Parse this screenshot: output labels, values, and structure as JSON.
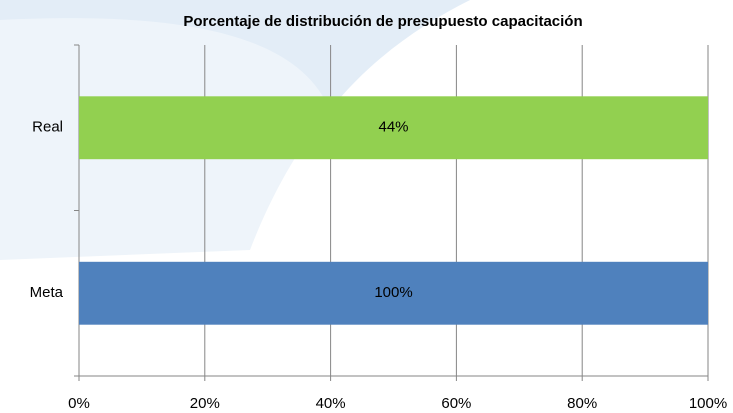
{
  "chart_data": {
    "type": "bar",
    "orientation": "horizontal",
    "stacked": "percent",
    "title": "Porcentaje de distribución de presupuesto capacitación",
    "categories": [
      "Real",
      "Meta"
    ],
    "series": [
      {
        "colors": [
          "#92d050",
          "#4f81bd"
        ],
        "values": [
          44,
          100
        ],
        "value_labels": [
          "44%",
          "100%"
        ]
      }
    ],
    "xlim": [
      0,
      100
    ],
    "xticks": [
      {
        "value": 0,
        "label": "0%"
      },
      {
        "value": 20,
        "label": "20%"
      },
      {
        "value": 40,
        "label": "40%"
      },
      {
        "value": 60,
        "label": "60%"
      },
      {
        "value": 80,
        "label": "80%"
      },
      {
        "value": 100,
        "label": "100%"
      }
    ],
    "grid": true
  }
}
